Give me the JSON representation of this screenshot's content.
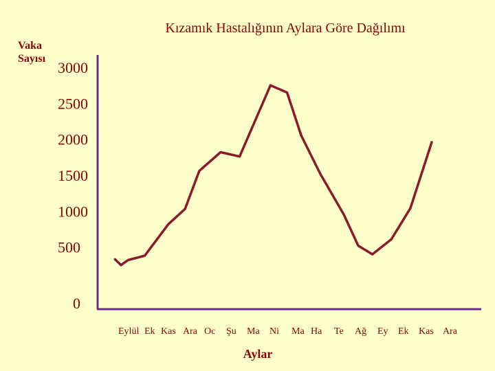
{
  "chart_data": {
    "type": "line",
    "title": "Kızamık Hastalığının Aylara Göre Dağılımı",
    "ylabel_line1": "Vaka",
    "ylabel_line2": "Sayısı",
    "xlabel": "Aylar",
    "ylim": [
      0,
      3000
    ],
    "yticks": [
      0,
      500,
      1000,
      1500,
      2000,
      2500,
      3000
    ],
    "categories": [
      "Eylül",
      "Ek",
      "Kas",
      "Ara",
      "Oc",
      "Şu",
      "Ma",
      "Ni",
      "Ma",
      "Ha",
      "Te",
      "Ağ",
      "Ey",
      "Ek",
      "Kas",
      "Ara"
    ],
    "points": [
      {
        "x": 0.0,
        "y": 250
      },
      {
        "x": 0.3,
        "y": 320
      },
      {
        "x": 1.0,
        "y": 380
      },
      {
        "x": 2.0,
        "y": 820
      },
      {
        "x": 2.7,
        "y": 1030
      },
      {
        "x": 3.3,
        "y": 1560
      },
      {
        "x": 4.2,
        "y": 1820
      },
      {
        "x": 5.0,
        "y": 1760
      },
      {
        "x": 6.3,
        "y": 2750
      },
      {
        "x": 7.0,
        "y": 2650
      },
      {
        "x": 7.6,
        "y": 2050
      },
      {
        "x": 8.4,
        "y": 1520
      },
      {
        "x": 9.4,
        "y": 950
      },
      {
        "x": 10.0,
        "y": 520
      },
      {
        "x": 10.6,
        "y": 400
      },
      {
        "x": 11.4,
        "y": 610
      },
      {
        "x": 12.2,
        "y": 1040
      },
      {
        "x": 13.1,
        "y": 1960
      }
    ],
    "grid": false,
    "line_color": "#8b1a2b",
    "axis_color": "#6a2c8c",
    "text_color": "#8b0000"
  }
}
